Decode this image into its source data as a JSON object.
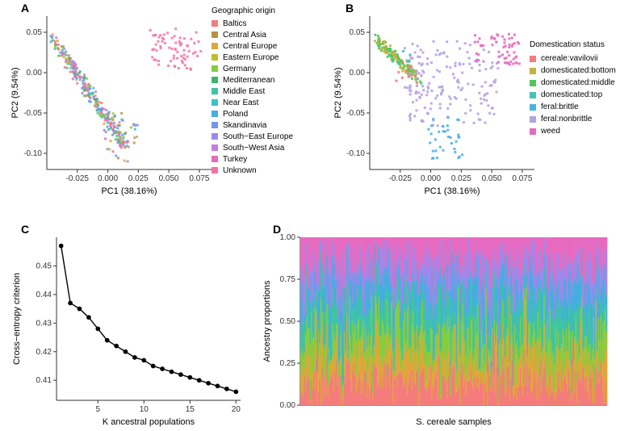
{
  "colors": {
    "background": "#ffffff",
    "axis": "#333333",
    "grid": "#e6e6e6",
    "text": "#000000"
  },
  "panelA": {
    "label": "A",
    "type": "scatter",
    "xlabel": "PC1 (38.16%)",
    "ylabel": "PC2 (9.54%)",
    "xlim": [
      -0.05,
      0.085
    ],
    "ylim": [
      -0.12,
      0.07
    ],
    "xticks": [
      -0.025,
      0.0,
      0.025,
      0.05,
      0.075
    ],
    "yticks": [
      -0.1,
      -0.05,
      0.0,
      0.05
    ],
    "legend_title": "Geographic origin",
    "categories": [
      {
        "label": "Baltics",
        "color": "#f47c7c"
      },
      {
        "label": "Central Asia",
        "color": "#b79148"
      },
      {
        "label": "Central Europe",
        "color": "#e0a63a"
      },
      {
        "label": "Eastern Europe",
        "color": "#bdbd2f"
      },
      {
        "label": "Germany",
        "color": "#88cc3e"
      },
      {
        "label": "Mediterranean",
        "color": "#3eb36a"
      },
      {
        "label": "Middle East",
        "color": "#3fc5a0"
      },
      {
        "label": "Near East",
        "color": "#3ac0cc"
      },
      {
        "label": "Poland",
        "color": "#45aee0"
      },
      {
        "label": "Skandinavia",
        "color": "#7195f0"
      },
      {
        "label": "South−East Europe",
        "color": "#9d88ec"
      },
      {
        "label": "South−West Asia",
        "color": "#c77ce0"
      },
      {
        "label": "Turkey",
        "color": "#e66bc0"
      },
      {
        "label": "Unknown",
        "color": "#f472a3"
      }
    ],
    "marker": "square",
    "marker_size": 3
  },
  "panelB": {
    "label": "B",
    "type": "scatter",
    "xlabel": "PC1 (38.16%)",
    "ylabel": "PC2 (9.54%)",
    "xlim": [
      -0.05,
      0.085
    ],
    "ylim": [
      -0.12,
      0.07
    ],
    "xticks": [
      -0.025,
      0.0,
      0.025,
      0.05,
      0.075
    ],
    "yticks": [
      -0.1,
      -0.05,
      0.0,
      0.05
    ],
    "legend_title": "Domestication status",
    "categories": [
      {
        "label": "cereale:vavilovii",
        "color": "#f47c7c"
      },
      {
        "label": "domesticated:bottom",
        "color": "#c4b13f"
      },
      {
        "label": "domesticated:middle",
        "color": "#4fc75a"
      },
      {
        "label": "domesticated:top",
        "color": "#45c2b4"
      },
      {
        "label": "feral:brittle",
        "color": "#4db1ea"
      },
      {
        "label": "feral:nonbrittle",
        "color": "#b3a3e4"
      },
      {
        "label": "weed",
        "color": "#e66bc0"
      }
    ],
    "marker": "square",
    "marker_size": 3
  },
  "panelC": {
    "label": "C",
    "type": "line",
    "xlabel": "K ancestral populations",
    "ylabel": "Cross−entropy criterion",
    "xlim": [
      0.5,
      20.5
    ],
    "ylim": [
      0.403,
      0.46
    ],
    "xticks": [
      5,
      10,
      15,
      20
    ],
    "yticks": [
      0.41,
      0.42,
      0.43,
      0.44,
      0.45
    ],
    "line_color": "#000000",
    "marker": "circle",
    "marker_size": 4,
    "x": [
      1,
      2,
      3,
      4,
      5,
      6,
      7,
      8,
      9,
      10,
      11,
      12,
      13,
      14,
      15,
      16,
      17,
      18,
      19,
      20
    ],
    "y": [
      0.457,
      0.437,
      0.435,
      0.432,
      0.428,
      0.424,
      0.422,
      0.42,
      0.418,
      0.417,
      0.415,
      0.414,
      0.413,
      0.412,
      0.411,
      0.41,
      0.409,
      0.408,
      0.407,
      0.406
    ]
  },
  "panelD": {
    "label": "D",
    "type": "stacked-bar",
    "xlabel": "S. cereale samples",
    "ylabel": "Ancestry proportions",
    "ylim": [
      0,
      1
    ],
    "yticks": [
      0.0,
      0.25,
      0.5,
      0.75,
      1.0
    ],
    "n_bars": 260,
    "ancestry_colors": [
      "#f47c7c",
      "#e0a63a",
      "#88cc3e",
      "#3fc5a0",
      "#45aee0",
      "#9d88ec",
      "#e66bc0"
    ]
  }
}
